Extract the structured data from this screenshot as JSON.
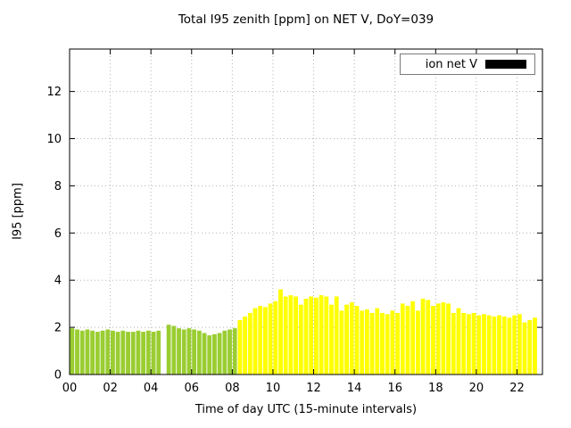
{
  "chart_data": {
    "type": "bar",
    "title": "Total I95 zenith [ppm] on NET V, DoY=039",
    "xlabel": "Time of day UTC (15-minute intervals)",
    "ylabel": "I95 [ppm]",
    "legend": {
      "label": "ion net V",
      "swatch_color": "#000000",
      "position": "top-right-inside"
    },
    "xlim": [
      0,
      23.25
    ],
    "ylim": [
      0,
      13.8
    ],
    "grid": "dotted",
    "x_tick_positions": [
      0,
      2,
      4,
      6,
      8,
      10,
      12,
      14,
      16,
      18,
      20,
      22
    ],
    "x_tick_labels": [
      "00",
      "02",
      "04",
      "06",
      "08",
      "10",
      "12",
      "14",
      "16",
      "18",
      "20",
      "22"
    ],
    "y_tick_positions": [
      0,
      2,
      4,
      6,
      8,
      10,
      12
    ],
    "y_tick_labels": [
      "0",
      "2",
      "4",
      "6",
      "8",
      "10",
      "12"
    ],
    "start_hour": 0.0,
    "interval_hours": 0.25,
    "series_name": "ion net V",
    "values": [
      1.95,
      1.9,
      1.85,
      1.9,
      1.85,
      1.8,
      1.85,
      1.9,
      1.85,
      1.8,
      1.85,
      1.8,
      1.8,
      1.85,
      1.8,
      1.85,
      1.8,
      1.85,
      0,
      2.1,
      2.05,
      1.95,
      1.9,
      1.95,
      1.9,
      1.85,
      1.75,
      1.65,
      1.7,
      1.75,
      1.85,
      1.9,
      1.95,
      2.3,
      2.45,
      2.6,
      2.8,
      2.9,
      2.85,
      3.0,
      3.1,
      3.6,
      3.3,
      3.35,
      3.3,
      2.95,
      3.2,
      3.3,
      3.25,
      3.35,
      3.3,
      2.95,
      3.3,
      2.7,
      2.95,
      3.05,
      2.9,
      2.7,
      2.75,
      2.6,
      2.8,
      2.6,
      2.55,
      2.7,
      2.6,
      3.0,
      2.9,
      3.1,
      2.7,
      3.2,
      3.15,
      2.9,
      3.0,
      3.05,
      3.0,
      2.6,
      2.8,
      2.6,
      2.55,
      2.6,
      2.5,
      2.55,
      2.5,
      2.45,
      2.5,
      2.45,
      2.4,
      2.5,
      2.55,
      2.2,
      2.3,
      2.4
    ],
    "color_split_index": 33,
    "colors": {
      "early": "#9acd32",
      "late": "#ffff00"
    },
    "grid_color": "#b3b3b3",
    "axis_color": "#000000"
  }
}
